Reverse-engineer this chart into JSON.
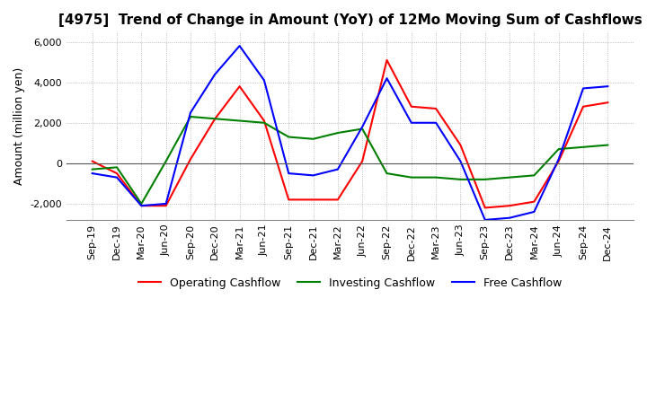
{
  "title": "[4975]  Trend of Change in Amount (YoY) of 12Mo Moving Sum of Cashflows",
  "ylabel": "Amount (million yen)",
  "ylim": [
    -2800,
    6500
  ],
  "yticks": [
    -2000,
    0,
    2000,
    4000,
    6000
  ],
  "x_labels": [
    "Sep-19",
    "Dec-19",
    "Mar-20",
    "Jun-20",
    "Sep-20",
    "Dec-20",
    "Mar-21",
    "Jun-21",
    "Sep-21",
    "Dec-21",
    "Mar-22",
    "Jun-22",
    "Sep-22",
    "Dec-22",
    "Mar-23",
    "Jun-23",
    "Sep-23",
    "Dec-23",
    "Mar-24",
    "Jun-24",
    "Sep-24",
    "Dec-24"
  ],
  "operating": [
    100,
    -500,
    -2100,
    -2100,
    200,
    2200,
    3800,
    2100,
    -1800,
    -1800,
    -1800,
    100,
    5100,
    2800,
    2700,
    900,
    -2200,
    -2100,
    -1900,
    100,
    2800,
    3000
  ],
  "investing": [
    -300,
    -200,
    -2000,
    100,
    2300,
    2200,
    2100,
    2000,
    1300,
    1200,
    1500,
    1700,
    -500,
    -700,
    -700,
    -800,
    -800,
    -700,
    -600,
    700,
    800,
    900
  ],
  "free": [
    -500,
    -700,
    -2100,
    -2000,
    2500,
    4400,
    5800,
    4100,
    -500,
    -600,
    -300,
    1800,
    4200,
    2000,
    2000,
    100,
    -2800,
    -2700,
    -2400,
    200,
    3700,
    3800
  ],
  "op_color": "#ff0000",
  "inv_color": "#008000",
  "free_color": "#0000ff",
  "grid_color": "#aaaaaa",
  "bg_color": "#ffffff",
  "title_fontsize": 11,
  "label_fontsize": 9,
  "tick_fontsize": 8
}
